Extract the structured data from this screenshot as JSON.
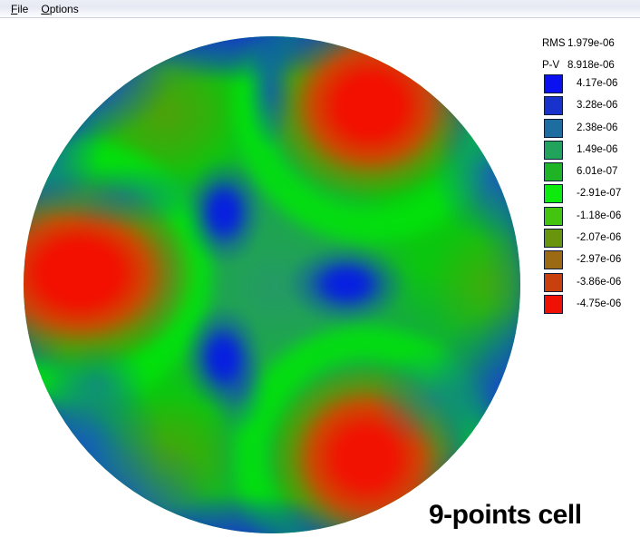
{
  "menu": {
    "items": [
      {
        "label": "File"
      },
      {
        "label": "Options"
      }
    ]
  },
  "legend": {
    "rms_label": "RMS",
    "rms_value": "1.979e-06",
    "pv_label": "P-V",
    "pv_value": "8.918e-06",
    "entries": [
      {
        "color": "#0a10f0",
        "value": "4.17e-06"
      },
      {
        "color": "#1733cc",
        "value": "3.28e-06"
      },
      {
        "color": "#1d6da0",
        "value": "2.38e-06"
      },
      {
        "color": "#21a35c",
        "value": "1.49e-06"
      },
      {
        "color": "#1eb426",
        "value": "6.01e-07"
      },
      {
        "color": "#0dea0d",
        "value": "-2.91e-07"
      },
      {
        "color": "#45c40f",
        "value": "-1.18e-06"
      },
      {
        "color": "#68940e",
        "value": "-2.07e-06"
      },
      {
        "color": "#9c6a12",
        "value": "-2.97e-06"
      },
      {
        "color": "#c8400e",
        "value": "-3.86e-06"
      },
      {
        "color": "#f01105",
        "value": "-4.75e-06"
      }
    ]
  },
  "caption": "9-points cell",
  "chart_data": {
    "type": "heatmap",
    "title": "9-points cell",
    "stats": {
      "RMS": 1.979e-06,
      "P-V": 8.918e-06
    },
    "legend_levels": [
      4.17e-06,
      3.28e-06,
      2.38e-06,
      1.49e-06,
      6.01e-07,
      -2.91e-07,
      -1.18e-06,
      -2.07e-06,
      -2.97e-06,
      -3.86e-06,
      -4.75e-06
    ],
    "legend_position": "right",
    "shape": "circular aperture surface-error map"
  }
}
